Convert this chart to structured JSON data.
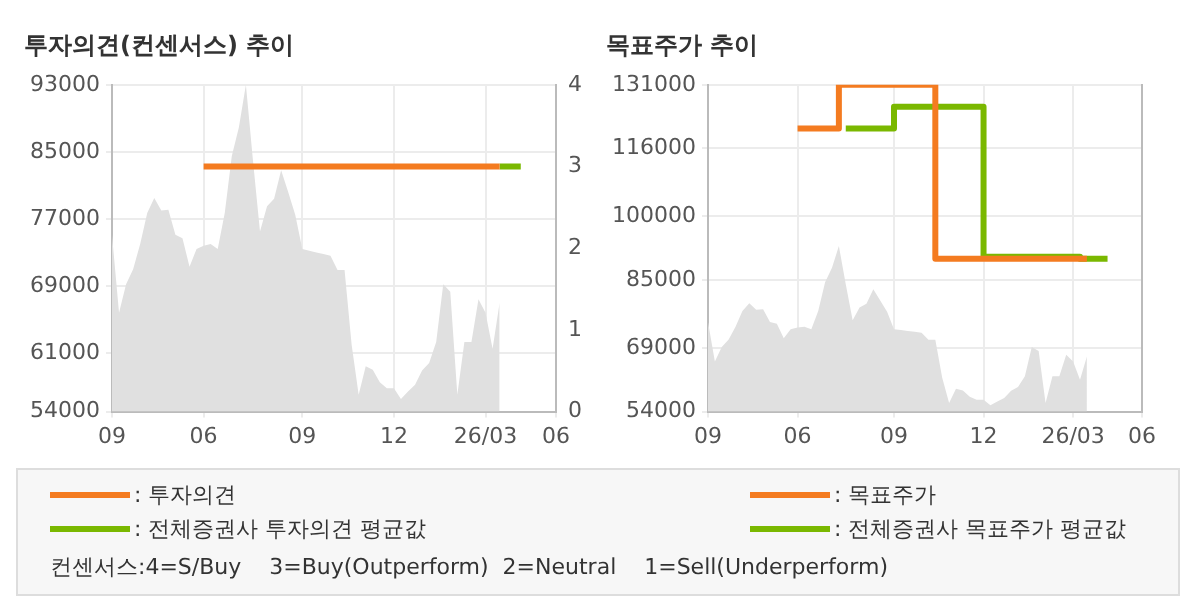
{
  "chart_data": [
    {
      "type": "area",
      "title": "투자의견(컨센서스) 추이",
      "legend": "bottom",
      "grid": true,
      "categories": [
        "09",
        null,
        null,
        null,
        null,
        null,
        null,
        null,
        null,
        null,
        null,
        null,
        null,
        "06",
        null,
        null,
        null,
        null,
        null,
        null,
        null,
        null,
        null,
        null,
        null,
        null,
        null,
        "09",
        null,
        null,
        null,
        null,
        null,
        null,
        null,
        null,
        null,
        null,
        null,
        null,
        "12",
        null,
        null,
        null,
        null,
        null,
        null,
        null,
        null,
        null,
        null,
        null,
        null,
        "26/03",
        null,
        null,
        null,
        null,
        null,
        null,
        null,
        null,
        null,
        "06"
      ],
      "ylim": [
        54000,
        93000
      ],
      "yticks": [
        54000,
        61000,
        69000,
        77000,
        85000,
        93000
      ],
      "y2lim": [
        0,
        4
      ],
      "y2ticks": [
        0,
        1,
        2,
        3,
        4
      ],
      "annotations": [
        "컨센서스:4=S/Buy    3=Buy(Outperform)  2=Neutral    1=Sell(Underperform)"
      ],
      "series": [
        {
          "type": "line",
          "name": ": 투자의견",
          "color": "#f47b20",
          "axis": "y2",
          "values": [
            null,
            null,
            null,
            null,
            null,
            null,
            null,
            null,
            null,
            null,
            null,
            null,
            null,
            3,
            3,
            3,
            3,
            3,
            3,
            3,
            3,
            3,
            3,
            3,
            3,
            3,
            3,
            3,
            3,
            3,
            3,
            3,
            3,
            3,
            3,
            3,
            3,
            3,
            3,
            3,
            3,
            3,
            3,
            3,
            3,
            3,
            3,
            3,
            3,
            3,
            3,
            3,
            3,
            3,
            3,
            3,
            null,
            null,
            null,
            null,
            null,
            null,
            null,
            null
          ]
        },
        {
          "type": "line",
          "name": ": 전체증권사 투자의견 평균값",
          "color": "#7ab800",
          "axis": "y2",
          "values": [
            null,
            null,
            null,
            null,
            null,
            null,
            null,
            null,
            null,
            null,
            null,
            null,
            null,
            null,
            null,
            null,
            null,
            null,
            null,
            null,
            null,
            null,
            null,
            null,
            null,
            null,
            null,
            null,
            null,
            null,
            null,
            null,
            null,
            null,
            null,
            null,
            null,
            null,
            null,
            null,
            null,
            null,
            null,
            null,
            null,
            null,
            null,
            null,
            null,
            null,
            null,
            null,
            null,
            null,
            null,
            3,
            3,
            3,
            3,
            null,
            null,
            null,
            null,
            null
          ]
        },
        {
          "color": "#e0e0e0",
          "values": [
            75100,
            65800,
            69200,
            71000,
            74000,
            77700,
            79500,
            78000,
            78100,
            75100,
            74700,
            71300,
            73400,
            73800,
            74000,
            73400,
            77700,
            84500,
            87900,
            93000,
            84000,
            75500,
            78500,
            79400,
            82800,
            80200,
            77500,
            73400,
            73200,
            73000,
            72800,
            72600,
            70900,
            70900,
            62000,
            56000,
            59400,
            59000,
            57500,
            56800,
            56800,
            55500,
            56400,
            57200,
            58900,
            59800,
            62300,
            69200,
            68300,
            56000,
            62300,
            62300,
            67400,
            65800,
            61500,
            67000,
            null,
            null,
            null,
            null,
            null,
            null,
            null,
            null
          ]
        }
      ]
    },
    {
      "type": "step",
      "title": "목표주가 추이",
      "legend": "bottom",
      "grid": true,
      "categories": [
        "09",
        null,
        null,
        null,
        null,
        null,
        null,
        null,
        null,
        null,
        null,
        null,
        null,
        "06",
        null,
        null,
        null,
        null,
        null,
        null,
        null,
        null,
        null,
        null,
        null,
        null,
        null,
        "09",
        null,
        null,
        null,
        null,
        null,
        null,
        null,
        null,
        null,
        null,
        null,
        null,
        "12",
        null,
        null,
        null,
        null,
        null,
        null,
        null,
        null,
        null,
        null,
        null,
        null,
        "26/03",
        null,
        null,
        null,
        null,
        null,
        null,
        null,
        null,
        null,
        "06"
      ],
      "ylim": [
        54000,
        131000
      ],
      "yticks": [
        54000,
        69000,
        85000,
        100000,
        116000,
        131000
      ],
      "series": [
        {
          "name": ": 목표주가",
          "color": "#f47b20",
          "values": [
            null,
            null,
            null,
            null,
            null,
            null,
            null,
            null,
            null,
            null,
            null,
            null,
            null,
            120700,
            120700,
            120700,
            120700,
            120700,
            120700,
            120700,
            131000,
            131000,
            131000,
            131000,
            131000,
            131000,
            131000,
            131000,
            131000,
            131000,
            131000,
            131000,
            131000,
            131000,
            90000,
            90000,
            90000,
            90000,
            90000,
            90000,
            90000,
            90000,
            90000,
            90000,
            90000,
            90000,
            90000,
            90000,
            90000,
            90000,
            90000,
            90000,
            90000,
            90000,
            90000,
            90000,
            null,
            null,
            null,
            null,
            null,
            null,
            null,
            null
          ]
        },
        {
          "name": ": 전체증권사 목표주가 평균값",
          "color": "#7ab800",
          "values": [
            null,
            null,
            null,
            null,
            null,
            null,
            null,
            null,
            null,
            null,
            null,
            null,
            null,
            null,
            null,
            null,
            null,
            null,
            null,
            null,
            120700,
            120700,
            120700,
            120700,
            120700,
            120700,
            120700,
            120700,
            125800,
            125800,
            125800,
            125800,
            125800,
            125800,
            125800,
            125800,
            125800,
            125800,
            125800,
            125800,
            125800,
            90500,
            90500,
            90500,
            90500,
            90500,
            90500,
            90500,
            90500,
            90500,
            90500,
            90500,
            90500,
            90500,
            90500,
            90000,
            90000,
            90000,
            90000,
            null,
            null,
            null,
            null,
            null
          ]
        },
        {
          "type": "area",
          "color": "#e0e0e0",
          "values": [
            75100,
            65800,
            69200,
            71000,
            74000,
            77700,
            79500,
            78000,
            78100,
            75100,
            74700,
            71300,
            73400,
            73800,
            74000,
            73400,
            77700,
            84500,
            87900,
            93000,
            84000,
            75500,
            78500,
            79400,
            82800,
            80200,
            77500,
            73400,
            73200,
            73000,
            72800,
            72600,
            70900,
            70900,
            62000,
            56000,
            59400,
            59000,
            57500,
            56800,
            56800,
            55500,
            56400,
            57200,
            58900,
            59800,
            62300,
            69200,
            68300,
            56000,
            62300,
            62300,
            67400,
            65800,
            61500,
            67000,
            null,
            null,
            null,
            null,
            null,
            null,
            null,
            null
          ]
        }
      ]
    }
  ]
}
